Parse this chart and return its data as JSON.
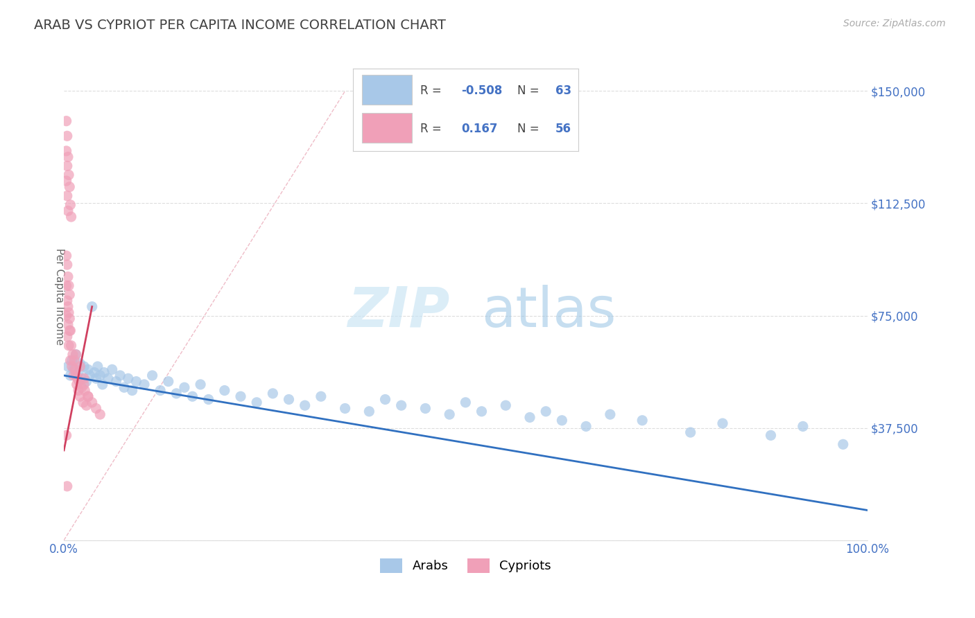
{
  "title": "ARAB VS CYPRIOT PER CAPITA INCOME CORRELATION CHART",
  "source_text": "Source: ZipAtlas.com",
  "ylabel": "Per Capita Income",
  "xlim": [
    0.0,
    1.0
  ],
  "ylim": [
    0,
    162500
  ],
  "yticks": [
    0,
    37500,
    75000,
    112500,
    150000
  ],
  "ytick_labels": [
    "",
    "$37,500",
    "$75,000",
    "$112,500",
    "$150,000"
  ],
  "xtick_labels": [
    "0.0%",
    "",
    "",
    "",
    "",
    "100.0%"
  ],
  "xticks": [
    0.0,
    0.2,
    0.4,
    0.6,
    0.8,
    1.0
  ],
  "arab_color": "#A8C8E8",
  "cypriot_color": "#F0A0B8",
  "arab_line_color": "#3070C0",
  "cypriot_line_color": "#D04060",
  "cypriot_dash_color": "#E090A0",
  "legend_arab_label": "Arabs",
  "legend_cypriot_label": "Cypriots",
  "R_arab": -0.508,
  "N_arab": 63,
  "R_cypriot": 0.167,
  "N_cypriot": 56,
  "watermark_zip": "ZIP",
  "watermark_atlas": "atlas",
  "title_color": "#404040",
  "axis_label_color": "#666666",
  "tick_color": "#4472c4",
  "background_color": "#ffffff",
  "arab_x": [
    0.005,
    0.008,
    0.01,
    0.012,
    0.015,
    0.018,
    0.02,
    0.022,
    0.025,
    0.028,
    0.03,
    0.032,
    0.035,
    0.038,
    0.04,
    0.042,
    0.045,
    0.048,
    0.05,
    0.055,
    0.06,
    0.065,
    0.07,
    0.075,
    0.08,
    0.085,
    0.09,
    0.1,
    0.11,
    0.12,
    0.13,
    0.14,
    0.15,
    0.16,
    0.17,
    0.18,
    0.2,
    0.22,
    0.24,
    0.26,
    0.28,
    0.3,
    0.32,
    0.35,
    0.38,
    0.4,
    0.42,
    0.45,
    0.48,
    0.5,
    0.52,
    0.55,
    0.58,
    0.6,
    0.62,
    0.65,
    0.68,
    0.72,
    0.78,
    0.82,
    0.88,
    0.92,
    0.97
  ],
  "arab_y": [
    58000,
    55000,
    60000,
    57000,
    62000,
    56000,
    59000,
    54000,
    58000,
    53000,
    57000,
    55000,
    78000,
    56000,
    54000,
    58000,
    55000,
    52000,
    56000,
    54000,
    57000,
    53000,
    55000,
    51000,
    54000,
    50000,
    53000,
    52000,
    55000,
    50000,
    53000,
    49000,
    51000,
    48000,
    52000,
    47000,
    50000,
    48000,
    46000,
    49000,
    47000,
    45000,
    48000,
    44000,
    43000,
    47000,
    45000,
    44000,
    42000,
    46000,
    43000,
    45000,
    41000,
    43000,
    40000,
    38000,
    42000,
    40000,
    36000,
    39000,
    35000,
    38000,
    32000
  ],
  "cypriot_x": [
    0.003,
    0.004,
    0.005,
    0.006,
    0.007,
    0.008,
    0.009,
    0.01,
    0.011,
    0.012,
    0.013,
    0.014,
    0.015,
    0.016,
    0.017,
    0.018,
    0.019,
    0.02,
    0.022,
    0.024,
    0.026,
    0.028,
    0.03,
    0.003,
    0.004,
    0.005,
    0.006,
    0.007,
    0.008,
    0.003,
    0.004,
    0.005,
    0.006,
    0.007,
    0.025,
    0.03,
    0.035,
    0.04,
    0.045,
    0.003,
    0.004,
    0.005,
    0.003,
    0.004,
    0.003,
    0.004,
    0.005,
    0.006,
    0.007,
    0.008,
    0.009,
    0.015,
    0.02,
    0.025,
    0.003,
    0.004
  ],
  "cypriot_y": [
    75000,
    68000,
    72000,
    65000,
    70000,
    60000,
    65000,
    58000,
    62000,
    55000,
    60000,
    57000,
    55000,
    52000,
    54000,
    50000,
    53000,
    48000,
    51000,
    46000,
    50000,
    45000,
    48000,
    85000,
    80000,
    78000,
    76000,
    74000,
    70000,
    95000,
    92000,
    88000,
    85000,
    82000,
    52000,
    48000,
    46000,
    44000,
    42000,
    120000,
    115000,
    110000,
    130000,
    125000,
    140000,
    135000,
    128000,
    122000,
    118000,
    112000,
    108000,
    62000,
    58000,
    54000,
    35000,
    18000
  ]
}
